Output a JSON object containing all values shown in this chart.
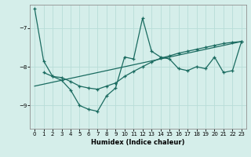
{
  "xlabel": "Humidex (Indice chaleur)",
  "bg_color": "#d5eeea",
  "line_color": "#1a6b60",
  "grid_color": "#b8ddd8",
  "xlim": [
    -0.5,
    23.5
  ],
  "ylim": [
    -9.6,
    -6.4
  ],
  "yticks": [
    -9,
    -8,
    -7
  ],
  "xticks": [
    0,
    1,
    2,
    3,
    4,
    5,
    6,
    7,
    8,
    9,
    10,
    11,
    12,
    13,
    14,
    15,
    16,
    17,
    18,
    19,
    20,
    21,
    22,
    23
  ],
  "main_x": [
    0,
    1,
    2,
    3,
    4,
    5,
    6,
    7,
    8,
    9,
    10,
    11,
    12,
    13,
    14,
    15,
    16,
    17,
    18,
    19,
    20,
    21,
    22,
    23
  ],
  "main_y": [
    -6.5,
    -7.85,
    -8.25,
    -8.35,
    -8.6,
    -9.0,
    -9.1,
    -9.15,
    -8.75,
    -8.55,
    -7.75,
    -7.8,
    -6.75,
    -7.6,
    -7.75,
    -7.8,
    -8.05,
    -8.1,
    -8.0,
    -8.05,
    -7.75,
    -8.15,
    -8.1,
    -7.35
  ],
  "mid_x": [
    1,
    2,
    3,
    4,
    5,
    6,
    7,
    8,
    9,
    10,
    11,
    12,
    13,
    14,
    15,
    16,
    17,
    18,
    19,
    20,
    21,
    22,
    23
  ],
  "mid_y": [
    -8.15,
    -8.25,
    -8.28,
    -8.38,
    -8.5,
    -8.55,
    -8.58,
    -8.5,
    -8.42,
    -8.25,
    -8.12,
    -8.0,
    -7.88,
    -7.78,
    -7.72,
    -7.65,
    -7.6,
    -7.55,
    -7.5,
    -7.45,
    -7.4,
    -7.37,
    -7.35
  ],
  "trend_x": [
    0,
    23
  ],
  "trend_y": [
    -8.5,
    -7.35
  ]
}
